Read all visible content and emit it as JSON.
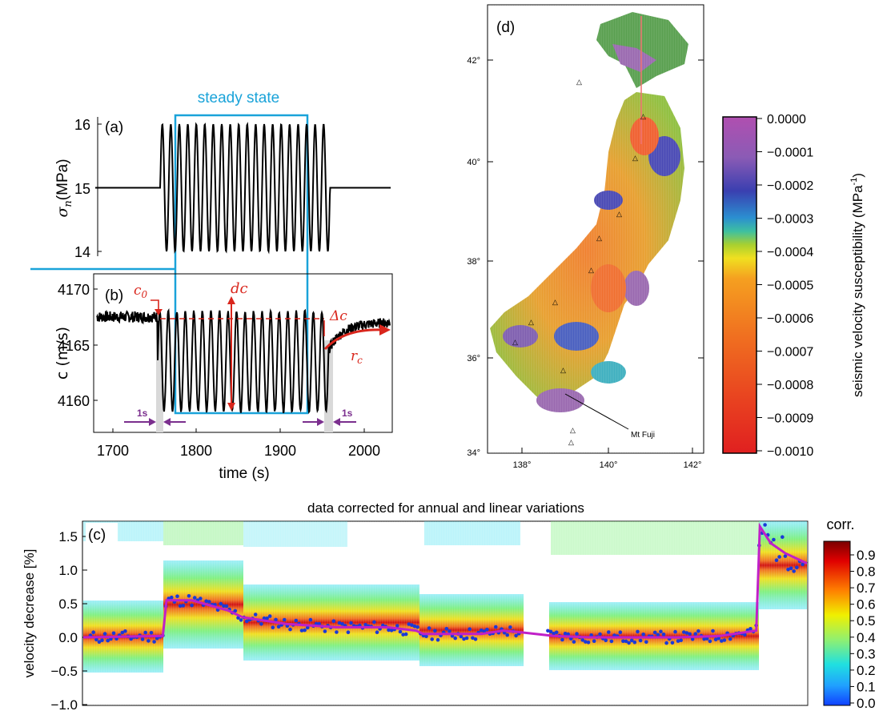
{
  "chart_data": [
    {
      "id": "a",
      "type": "line",
      "panel_label": "(a)",
      "ylabel": "σ_n (MPa)",
      "ylabel_sym": "σ",
      "ylabel_sub": "n",
      "ylabel_unit": "(MPa)",
      "yticks": [
        "16",
        "15",
        "14"
      ],
      "ylim": [
        14,
        16
      ],
      "xlim": [
        1680,
        2030
      ],
      "annotation": "steady state",
      "series": [
        {
          "name": "normal stress",
          "baseline": 15,
          "amplitude": 1,
          "oscillation_start": 1758,
          "oscillation_end": 1957,
          "cycles": 20
        }
      ]
    },
    {
      "id": "b",
      "type": "line",
      "panel_label": "(b)",
      "ylabel": "c (m/s)",
      "yticks": [
        "4170",
        "4165",
        "4160"
      ],
      "ylim": [
        4157,
        4171
      ],
      "xlim": [
        1680,
        2030
      ],
      "xlabel": "time (s)",
      "xticks": [
        "1700",
        "1800",
        "1900",
        "2000"
      ],
      "annotations": {
        "c0": "c",
        "c0_sub": "0",
        "dc": "dc",
        "delta_c": "Δc",
        "rc": "r",
        "rc_sub": "c",
        "one_s_left": "1s",
        "one_s_right": "1s"
      },
      "series": [
        {
          "name": "wave speed",
          "baseline": 4167.5,
          "oscillation_center": 4163.5,
          "oscillation_amplitude": 4.5,
          "recovery_start": 4164.5,
          "recovery_end": 4167
        }
      ]
    },
    {
      "id": "d",
      "type": "heatmap",
      "panel_label": "(d)",
      "lat_ticks": [
        "42°",
        "40°",
        "38°",
        "36°",
        "34°"
      ],
      "lon_ticks": [
        "138°",
        "140°",
        "142°"
      ],
      "annotation": "Mt Fuji",
      "colorbar": {
        "label": "seismic velocity susceptibility (MPa⁻¹)",
        "label_text": "seismic velocity susceptibility (MPa",
        "label_sup": "-1",
        "label_close": ")",
        "ticks": [
          "0.0000",
          "−0.0001",
          "−0.0002",
          "−0.0003",
          "−0.0004",
          "−0.0005",
          "−0.0006",
          "−0.0007",
          "−0.0008",
          "−0.0009",
          "−0.0010"
        ],
        "range": [
          -0.001,
          0.0
        ]
      }
    },
    {
      "id": "c",
      "type": "line",
      "panel_label": "(c)",
      "title": "data corrected for annual and linear variations",
      "ylabel": "velocity decrease [%]",
      "yticks": [
        "1.5",
        "1.0",
        "0.5",
        "0.0",
        "−0.5",
        "−1.0"
      ],
      "ylim": [
        -1.0,
        1.75
      ],
      "colorbar": {
        "label": "corr.",
        "ticks": [
          "0.9",
          "0.8",
          "0.7",
          "0.6",
          "0.5",
          "0.4",
          "0.3",
          "0.2",
          "0.1",
          "0.0"
        ],
        "range": [
          0.0,
          0.95
        ]
      },
      "series": [
        {
          "name": "velocity decrease trend",
          "x": [
            0,
            0.11,
            0.115,
            0.15,
            0.2,
            0.22,
            0.28,
            0.35,
            0.42,
            0.46,
            0.47,
            0.55,
            0.58,
            0.6,
            0.65,
            0.7,
            0.75,
            0.82,
            0.88,
            0.93,
            0.935,
            0.95,
            0.97,
            1.0
          ],
          "values": [
            0.0,
            0.02,
            0.55,
            0.55,
            0.4,
            0.3,
            0.2,
            0.15,
            0.15,
            0.1,
            0.05,
            0.05,
            0.1,
            0.08,
            0.02,
            0.0,
            0.0,
            0.0,
            0.02,
            0.1,
            1.65,
            1.4,
            1.25,
            1.1
          ]
        }
      ]
    }
  ]
}
